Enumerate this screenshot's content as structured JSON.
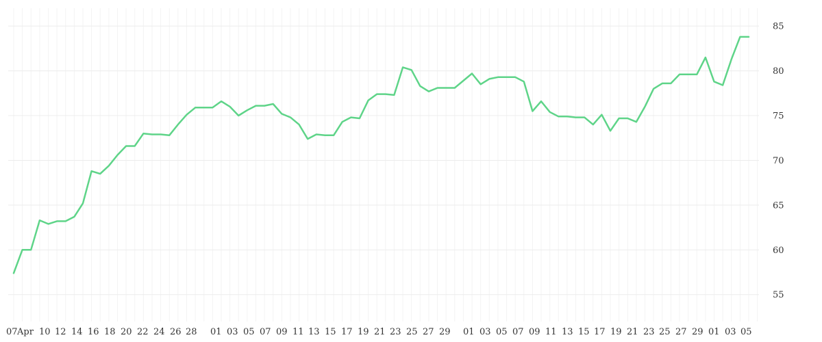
{
  "chart_data": {
    "type": "line",
    "title": "",
    "xlabel": "",
    "ylabel": "",
    "ylim": [
      52,
      87
    ],
    "y_ticks": [
      55,
      60,
      65,
      70,
      75,
      80,
      85
    ],
    "grid": true,
    "legend": "none",
    "colors": {
      "line": "#5ed488",
      "grid": "#ececec",
      "text": "#333333",
      "background": "#ffffff"
    },
    "x_tick_labels": [
      "07",
      "Apr",
      "10",
      "12",
      "14",
      "16",
      "18",
      "20",
      "22",
      "24",
      "26",
      "28",
      "01",
      "03",
      "05",
      "07",
      "09",
      "11",
      "13",
      "15",
      "17",
      "19",
      "21",
      "23",
      "25",
      "27",
      "29",
      "01",
      "03",
      "05",
      "07",
      "09",
      "11",
      "13",
      "15",
      "17",
      "19",
      "21",
      "23",
      "25",
      "27",
      "29",
      "01",
      "03",
      "05"
    ],
    "series": [
      {
        "values": [
          57.4,
          60.0,
          60.0,
          63.3,
          62.9,
          63.2,
          63.2,
          63.7,
          65.2,
          68.8,
          68.5,
          69.4,
          70.6,
          71.6,
          71.6,
          73.0,
          72.9,
          72.9,
          72.8,
          74.0,
          75.1,
          75.9,
          75.9,
          75.9,
          76.6,
          76.0,
          75.0,
          75.6,
          76.1,
          76.1,
          76.3,
          75.2,
          74.8,
          74.0,
          72.4,
          72.9,
          72.8,
          72.8,
          74.3,
          74.8,
          74.7,
          76.7,
          77.4,
          77.4,
          77.3,
          80.4,
          80.1,
          78.3,
          77.7,
          78.1,
          78.1,
          78.1,
          78.9,
          79.7,
          78.5,
          79.1,
          79.3,
          79.3,
          79.3,
          78.8,
          75.5,
          76.6,
          75.4,
          74.9,
          74.9,
          74.8,
          74.8,
          74.0,
          75.1,
          73.3,
          74.7,
          74.7,
          74.3,
          76.0,
          78.0,
          78.6,
          78.6,
          79.6,
          79.6,
          79.6,
          81.5,
          78.8,
          78.4,
          81.3,
          83.8,
          83.8
        ]
      }
    ]
  }
}
